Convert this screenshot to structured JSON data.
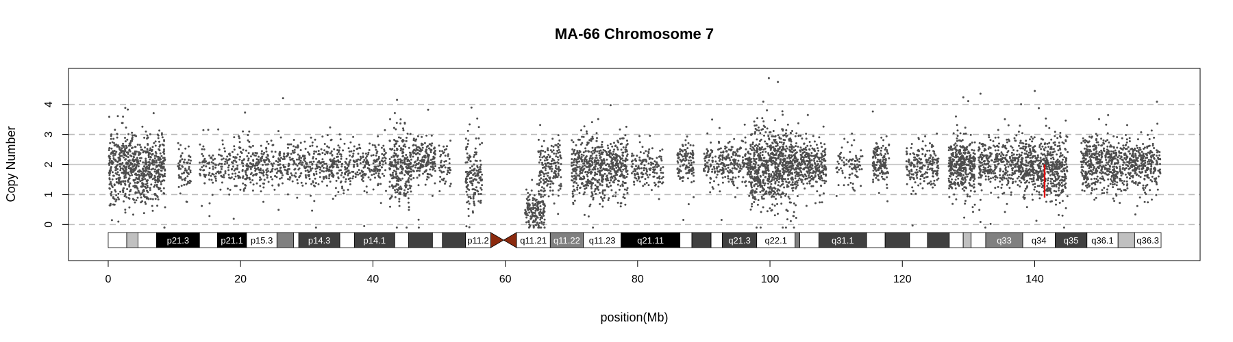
{
  "chart_data": {
    "type": "scatter",
    "title": "MA-66  Chromosome 7",
    "xlabel": "position(Mb)",
    "ylabel": "Copy Number",
    "xlim": [
      -6,
      165
    ],
    "ylim": [
      -1.2,
      5.2
    ],
    "x_ticks": [
      0,
      20,
      40,
      60,
      80,
      100,
      120,
      140
    ],
    "y_ticks": [
      0,
      1,
      2,
      3,
      4
    ],
    "dashed_reference_lines": [
      0,
      1,
      3,
      4
    ],
    "solid_reference_line": 2,
    "point_color": "#4d4d4d",
    "marker": {
      "x": 141.5,
      "y_from": 0.9,
      "y_to": 2.0,
      "color": "#e00000"
    },
    "centromere": {
      "start": 57.8,
      "end": 61.7,
      "color": "#8b2a0e"
    },
    "ideogram_bands": [
      {
        "start": 0.0,
        "end": 2.8,
        "fill": "#ffffff",
        "label": ""
      },
      {
        "start": 2.8,
        "end": 4.5,
        "fill": "#c0c0c0",
        "label": ""
      },
      {
        "start": 4.5,
        "end": 7.3,
        "fill": "#ffffff",
        "label": ""
      },
      {
        "start": 7.3,
        "end": 13.8,
        "fill": "#000000",
        "label": "p21.3"
      },
      {
        "start": 13.8,
        "end": 16.5,
        "fill": "#ffffff",
        "label": ""
      },
      {
        "start": 16.5,
        "end": 20.9,
        "fill": "#000000",
        "label": "p21.1"
      },
      {
        "start": 20.9,
        "end": 25.5,
        "fill": "#ffffff",
        "label": "p15.3"
      },
      {
        "start": 25.5,
        "end": 28.0,
        "fill": "#808080",
        "label": ""
      },
      {
        "start": 28.0,
        "end": 28.8,
        "fill": "#ffffff",
        "label": ""
      },
      {
        "start": 28.8,
        "end": 35.0,
        "fill": "#404040",
        "label": "p14.3"
      },
      {
        "start": 35.0,
        "end": 37.2,
        "fill": "#ffffff",
        "label": ""
      },
      {
        "start": 37.2,
        "end": 43.3,
        "fill": "#404040",
        "label": "p14.1"
      },
      {
        "start": 43.3,
        "end": 45.4,
        "fill": "#ffffff",
        "label": ""
      },
      {
        "start": 45.4,
        "end": 49.0,
        "fill": "#404040",
        "label": ""
      },
      {
        "start": 49.0,
        "end": 50.5,
        "fill": "#ffffff",
        "label": ""
      },
      {
        "start": 50.5,
        "end": 54.0,
        "fill": "#404040",
        "label": ""
      },
      {
        "start": 54.0,
        "end": 57.8,
        "fill": "#ffffff",
        "label": "p11.2"
      },
      {
        "start": 61.7,
        "end": 66.8,
        "fill": "#ffffff",
        "label": "q11.21"
      },
      {
        "start": 66.8,
        "end": 71.8,
        "fill": "#808080",
        "label": "q11.22"
      },
      {
        "start": 71.8,
        "end": 77.5,
        "fill": "#ffffff",
        "label": "q11.23"
      },
      {
        "start": 77.5,
        "end": 86.4,
        "fill": "#000000",
        "label": "q21.11"
      },
      {
        "start": 86.4,
        "end": 88.2,
        "fill": "#ffffff",
        "label": ""
      },
      {
        "start": 88.2,
        "end": 91.1,
        "fill": "#404040",
        "label": ""
      },
      {
        "start": 91.1,
        "end": 92.8,
        "fill": "#ffffff",
        "label": ""
      },
      {
        "start": 92.8,
        "end": 98.0,
        "fill": "#404040",
        "label": "q21.3"
      },
      {
        "start": 98.0,
        "end": 103.8,
        "fill": "#ffffff",
        "label": "q22.1"
      },
      {
        "start": 103.8,
        "end": 104.5,
        "fill": "#808080",
        "label": ""
      },
      {
        "start": 104.5,
        "end": 107.4,
        "fill": "#ffffff",
        "label": ""
      },
      {
        "start": 107.4,
        "end": 114.6,
        "fill": "#404040",
        "label": "q31.1"
      },
      {
        "start": 114.6,
        "end": 117.4,
        "fill": "#ffffff",
        "label": ""
      },
      {
        "start": 117.4,
        "end": 121.1,
        "fill": "#404040",
        "label": ""
      },
      {
        "start": 121.1,
        "end": 123.8,
        "fill": "#ffffff",
        "label": ""
      },
      {
        "start": 123.8,
        "end": 127.1,
        "fill": "#404040",
        "label": ""
      },
      {
        "start": 127.1,
        "end": 129.2,
        "fill": "#ffffff",
        "label": ""
      },
      {
        "start": 129.2,
        "end": 130.4,
        "fill": "#c0c0c0",
        "label": ""
      },
      {
        "start": 130.4,
        "end": 132.6,
        "fill": "#ffffff",
        "label": ""
      },
      {
        "start": 132.6,
        "end": 138.2,
        "fill": "#808080",
        "label": "q33"
      },
      {
        "start": 138.2,
        "end": 143.1,
        "fill": "#ffffff",
        "label": "q34"
      },
      {
        "start": 143.1,
        "end": 147.9,
        "fill": "#404040",
        "label": "q35"
      },
      {
        "start": 147.9,
        "end": 152.6,
        "fill": "#ffffff",
        "label": "q36.1"
      },
      {
        "start": 152.6,
        "end": 155.1,
        "fill": "#c0c0c0",
        "label": ""
      },
      {
        "start": 155.1,
        "end": 159.1,
        "fill": "#ffffff",
        "label": "q36.3"
      }
    ],
    "point_clusters": [
      {
        "x_range": [
          0.1,
          4.5
        ],
        "center": 1.9,
        "spread": 0.55,
        "n": 380
      },
      {
        "x_range": [
          4.5,
          8.6
        ],
        "center": 1.85,
        "spread": 0.5,
        "n": 340
      },
      {
        "x_range": [
          10.5,
          12.5
        ],
        "center": 1.9,
        "spread": 0.35,
        "n": 70
      },
      {
        "x_range": [
          13.8,
          19.0
        ],
        "center": 1.95,
        "spread": 0.35,
        "n": 130
      },
      {
        "x_range": [
          19.0,
          25.0
        ],
        "center": 2.0,
        "spread": 0.4,
        "n": 220
      },
      {
        "x_range": [
          25.0,
          35.0
        ],
        "center": 2.0,
        "spread": 0.38,
        "n": 360
      },
      {
        "x_range": [
          35.0,
          42.0
        ],
        "center": 1.95,
        "spread": 0.38,
        "n": 230
      },
      {
        "x_range": [
          42.5,
          45.8
        ],
        "center": 1.95,
        "spread": 0.6,
        "n": 260
      },
      {
        "x_range": [
          46.0,
          49.5
        ],
        "center": 2.15,
        "spread": 0.38,
        "n": 180
      },
      {
        "x_range": [
          50.0,
          51.8
        ],
        "center": 2.0,
        "spread": 0.35,
        "n": 50
      },
      {
        "x_range": [
          54.0,
          56.5
        ],
        "center": 1.6,
        "spread": 0.55,
        "n": 150
      },
      {
        "x_range": [
          63.0,
          66.0
        ],
        "center": 0.5,
        "spread": 0.35,
        "n": 160
      },
      {
        "x_range": [
          65.0,
          68.5
        ],
        "center": 1.75,
        "spread": 0.5,
        "n": 180
      },
      {
        "x_range": [
          70.0,
          78.5
        ],
        "center": 1.9,
        "spread": 0.5,
        "n": 620
      },
      {
        "x_range": [
          79.0,
          84.0
        ],
        "center": 1.9,
        "spread": 0.35,
        "n": 150
      },
      {
        "x_range": [
          86.0,
          88.5
        ],
        "center": 2.05,
        "spread": 0.35,
        "n": 120
      },
      {
        "x_range": [
          90.0,
          97.0
        ],
        "center": 2.0,
        "spread": 0.35,
        "n": 280
      },
      {
        "x_range": [
          97.0,
          104.0
        ],
        "center": 1.95,
        "spread": 0.6,
        "n": 760
      },
      {
        "x_range": [
          104.0,
          108.5
        ],
        "center": 2.0,
        "spread": 0.4,
        "n": 300
      },
      {
        "x_range": [
          110.0,
          114.0
        ],
        "center": 2.0,
        "spread": 0.35,
        "n": 90
      },
      {
        "x_range": [
          115.5,
          118.0
        ],
        "center": 2.05,
        "spread": 0.35,
        "n": 140
      },
      {
        "x_range": [
          120.5,
          125.5
        ],
        "center": 1.95,
        "spread": 0.35,
        "n": 200
      },
      {
        "x_range": [
          127.0,
          131.0
        ],
        "center": 2.0,
        "spread": 0.45,
        "n": 380
      },
      {
        "x_range": [
          131.5,
          137.5
        ],
        "center": 2.0,
        "spread": 0.4,
        "n": 320
      },
      {
        "x_range": [
          137.5,
          141.0
        ],
        "center": 1.95,
        "spread": 0.42,
        "n": 260
      },
      {
        "x_range": [
          141.0,
          145.0
        ],
        "center": 1.85,
        "spread": 0.5,
        "n": 330
      },
      {
        "x_range": [
          147.0,
          154.0
        ],
        "center": 2.05,
        "spread": 0.45,
        "n": 480
      },
      {
        "x_range": [
          154.0,
          159.0
        ],
        "center": 2.0,
        "spread": 0.4,
        "n": 280
      }
    ]
  }
}
